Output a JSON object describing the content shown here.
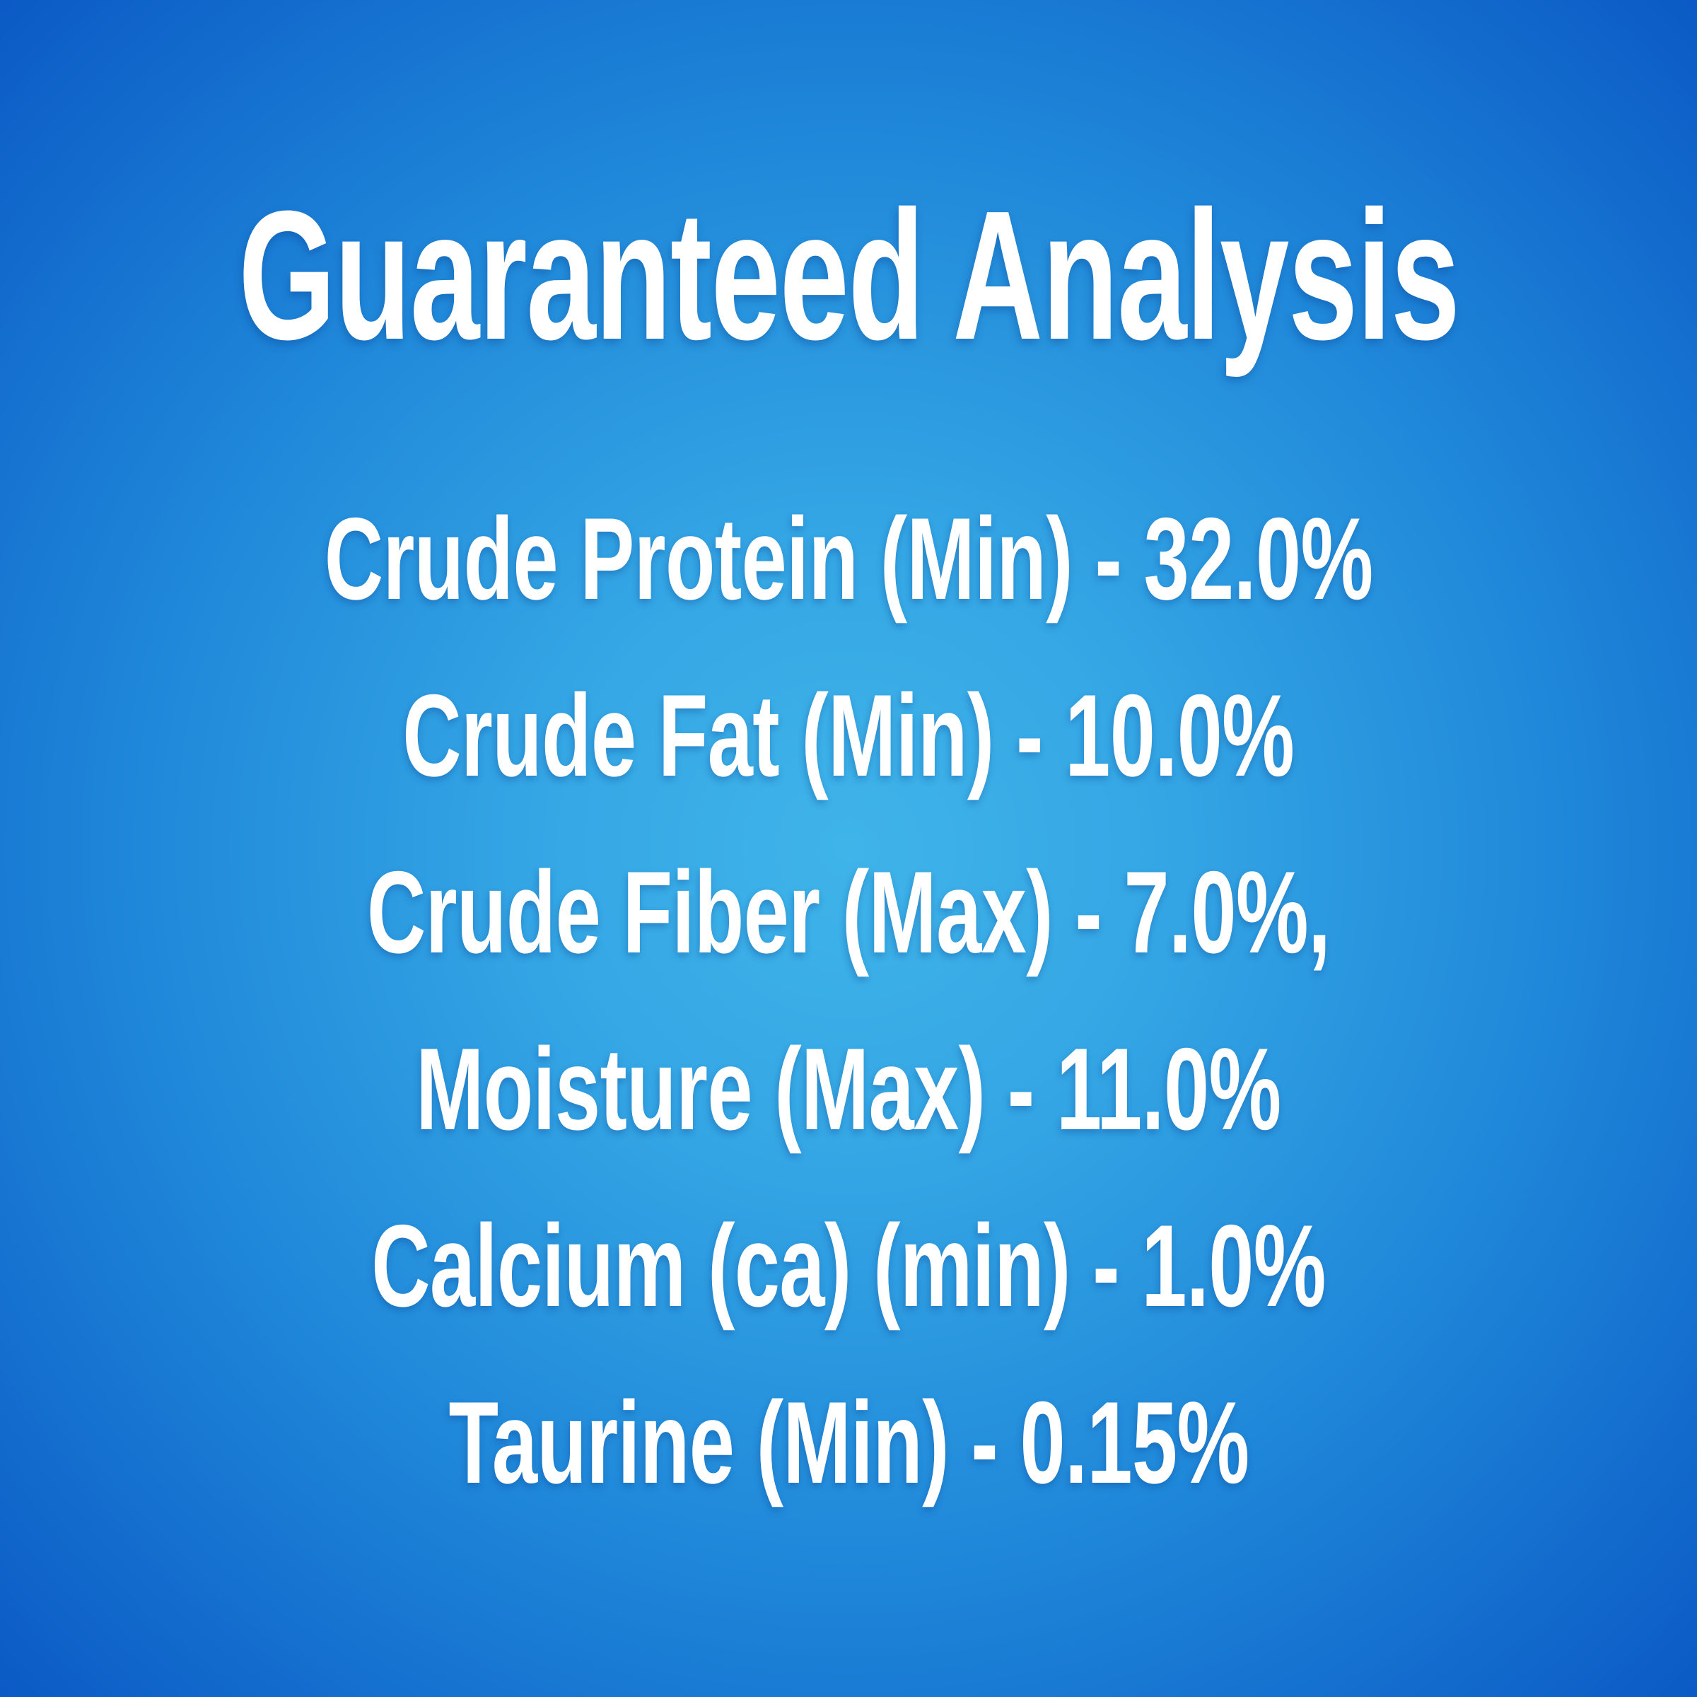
{
  "header": {
    "title": "Guaranteed Analysis"
  },
  "analysis": {
    "rows": [
      "Crude Protein (Min) - 32.0%",
      "Crude Fat (Min) - 10.0%",
      "Crude Fiber (Max) - 7.0%,",
      "Moisture (Max) - 11.0%",
      "Calcium (ca) (min) - 1.0%",
      "Taurine (Min) - 0.15%"
    ]
  },
  "colors": {
    "background_center": "#3FB4E9",
    "background_edge": "#0B5AC5",
    "text": "#FFFFFF"
  }
}
